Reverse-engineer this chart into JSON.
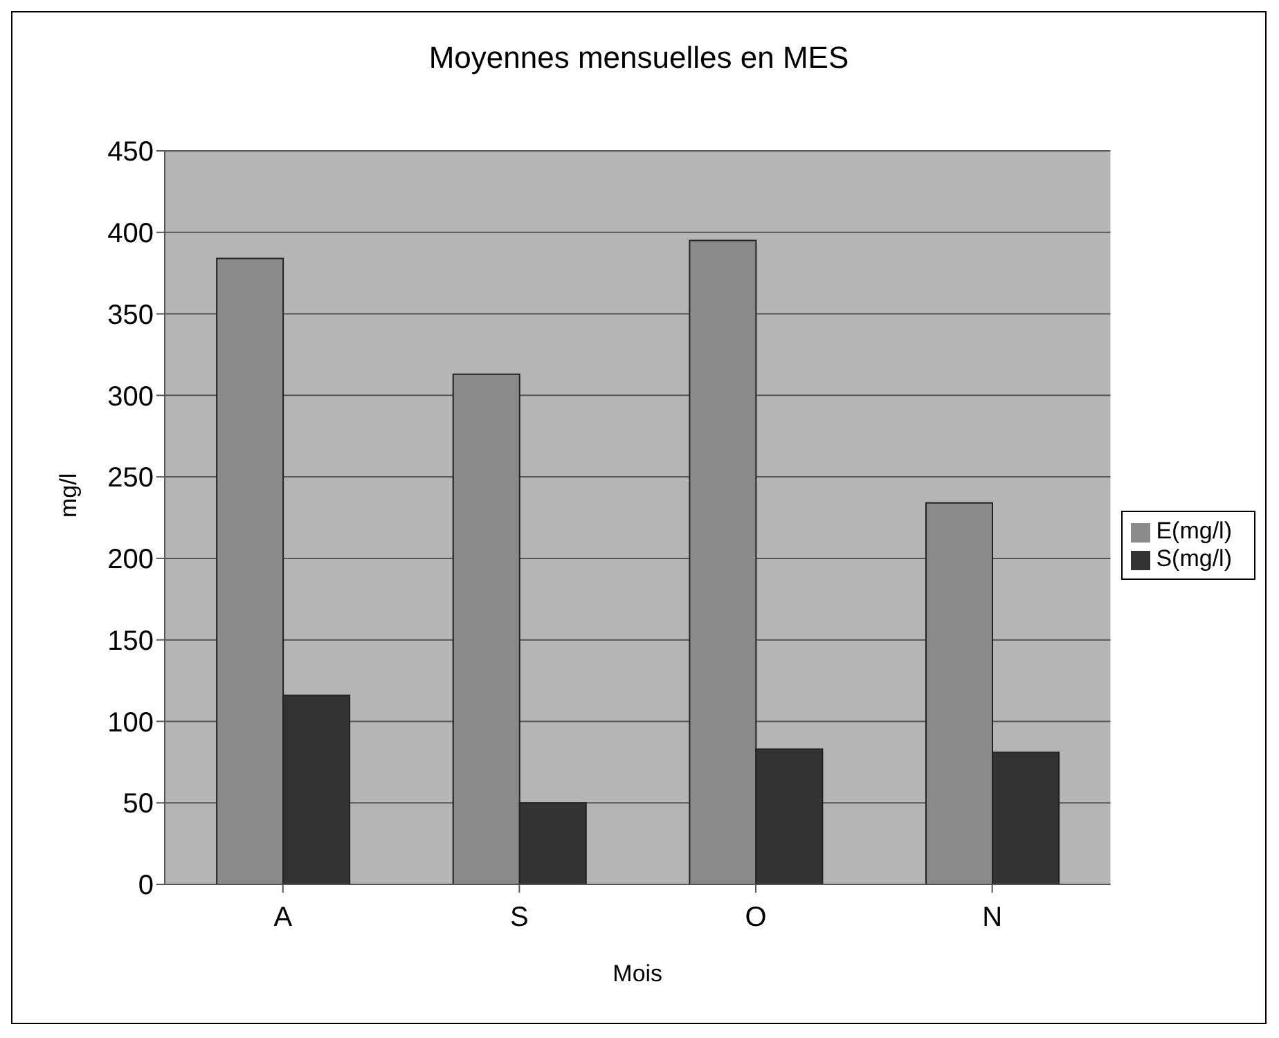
{
  "chart_data": {
    "type": "bar",
    "title": "Moyennes mensuelles en MES",
    "xlabel": "Mois",
    "ylabel": "mg/l",
    "categories": [
      "A",
      "S",
      "O",
      "N"
    ],
    "series": [
      {
        "name": "E(mg/l)",
        "color": "#8a8a8a",
        "values": [
          384,
          313,
          395,
          234
        ]
      },
      {
        "name": "S(mg/l)",
        "color": "#333333",
        "values": [
          116,
          50,
          83,
          81
        ]
      }
    ],
    "ylim": [
      0,
      450
    ],
    "yticks": [
      0,
      50,
      100,
      150,
      200,
      250,
      300,
      350,
      400,
      450
    ],
    "grid": "y",
    "legend": "right"
  }
}
